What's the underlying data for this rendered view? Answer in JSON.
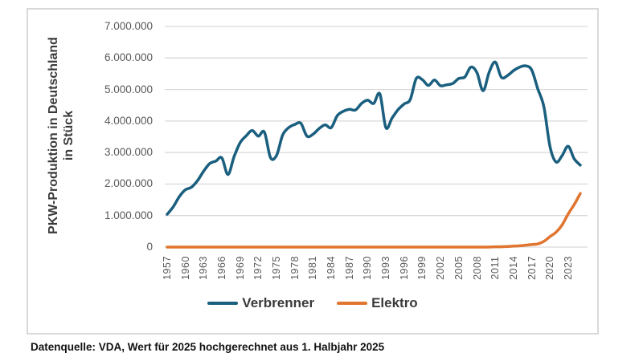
{
  "page": {
    "footer": "Datenquelle: VDA, Wert für 2025 hochgerechnet aus 1. Halbjahr 2025"
  },
  "chart": {
    "y_axis_title_line1": "PKW-Produktion in Deutschland",
    "y_axis_title_line2": "in Stück",
    "y_tick_labels": [
      "7.000.000",
      "6.000.000",
      "5.000.000",
      "4.000.000",
      "3.000.000",
      "2.000.000",
      "1.000.000",
      "0"
    ],
    "x_tick_labels": [
      "1957",
      "1960",
      "1963",
      "1966",
      "1969",
      "1972",
      "1975",
      "1978",
      "1981",
      "1984",
      "1987",
      "1990",
      "1993",
      "1996",
      "1999",
      "2002",
      "2005",
      "2008",
      "2011",
      "2014",
      "2017",
      "2020",
      "2023"
    ]
  },
  "chart_data": {
    "type": "line",
    "title": "",
    "xlabel": "",
    "ylabel": "PKW-Produktion in Deutschland in Stück",
    "ylim": [
      0,
      7000000
    ],
    "yticks": [
      7000000,
      6000000,
      5000000,
      4000000,
      3000000,
      2000000,
      1000000,
      0
    ],
    "grid": true,
    "smoothed_lines": true,
    "legend_position": "bottom",
    "x_range": [
      1957,
      2025
    ],
    "x": [
      1957,
      1958,
      1959,
      1960,
      1961,
      1962,
      1963,
      1964,
      1965,
      1966,
      1967,
      1968,
      1969,
      1970,
      1971,
      1972,
      1973,
      1974,
      1975,
      1976,
      1977,
      1978,
      1979,
      1980,
      1981,
      1982,
      1983,
      1984,
      1985,
      1986,
      1987,
      1988,
      1989,
      1990,
      1991,
      1992,
      1993,
      1994,
      1995,
      1996,
      1997,
      1998,
      1999,
      2000,
      2001,
      2002,
      2003,
      2004,
      2005,
      2006,
      2007,
      2008,
      2009,
      2010,
      2011,
      2012,
      2013,
      2014,
      2015,
      2016,
      2017,
      2018,
      2019,
      2020,
      2021,
      2022,
      2023,
      2024,
      2025
    ],
    "series": [
      {
        "name": "Verbrenner",
        "color": "#1a5f7f",
        "values": [
          1040000,
          1280000,
          1600000,
          1820000,
          1900000,
          2110000,
          2410000,
          2650000,
          2730000,
          2830000,
          2300000,
          2860000,
          3310000,
          3530000,
          3700000,
          3520000,
          3650000,
          2840000,
          2910000,
          3550000,
          3790000,
          3890000,
          3930000,
          3520000,
          3580000,
          3760000,
          3880000,
          3790000,
          4170000,
          4310000,
          4370000,
          4350000,
          4560000,
          4660000,
          4560000,
          4860000,
          3790000,
          4090000,
          4360000,
          4540000,
          4680000,
          5350000,
          5310000,
          5130000,
          5300000,
          5120000,
          5150000,
          5190000,
          5350000,
          5400000,
          5710000,
          5530000,
          4960000,
          5550000,
          5870000,
          5390000,
          5440000,
          5600000,
          5710000,
          5750000,
          5620000,
          5020000,
          4460000,
          3200000,
          2700000,
          2900000,
          3200000,
          2800000,
          2600000
        ]
      },
      {
        "name": "Elektro",
        "color": "#e0752f",
        "values": [
          0,
          0,
          0,
          0,
          0,
          0,
          0,
          0,
          0,
          0,
          0,
          0,
          0,
          0,
          0,
          0,
          0,
          0,
          0,
          0,
          0,
          0,
          0,
          0,
          0,
          0,
          0,
          0,
          0,
          0,
          0,
          0,
          0,
          0,
          0,
          0,
          0,
          0,
          0,
          0,
          0,
          0,
          0,
          0,
          0,
          0,
          0,
          0,
          0,
          0,
          0,
          0,
          0,
          0,
          10000,
          10000,
          20000,
          30000,
          40000,
          60000,
          80000,
          100000,
          180000,
          330000,
          470000,
          700000,
          1050000,
          1350000,
          1700000
        ]
      }
    ]
  },
  "colors": {
    "chart_border": "#d9d9d9",
    "gridline": "#d9d9d9",
    "tick_label": "#595959",
    "axis_title": "#3a3a3a",
    "footer_text": "#111111",
    "background": "#ffffff"
  }
}
